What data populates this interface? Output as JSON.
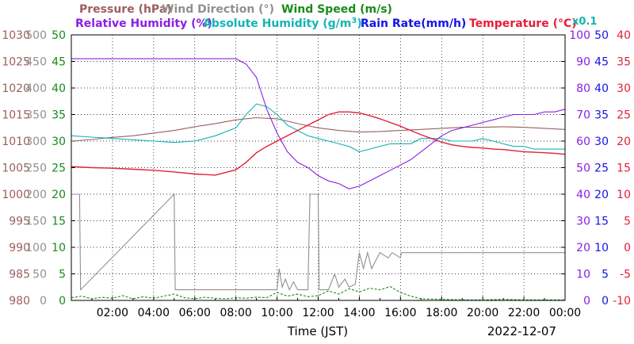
{
  "header": {
    "pressure": "Pressure (hPa)",
    "wind_dir": "Wind Direction (°)",
    "wind_speed": "Wind Speed (m/s)",
    "rel_hum": "Relative Humidity (%)",
    "abs_hum_main": "Absolute Humidity (g/m",
    "abs_hum_sup": "3",
    "abs_hum_end": ")",
    "rain": "Rain Rate(mm/h)",
    "temp": "Temperature (°C)",
    "rain_scale": "x0.1"
  },
  "footer": {
    "xlabel": "Time (JST)",
    "date": "2022-12-07"
  },
  "colors": {
    "pressure": "#9c5f5f",
    "wind_dir": "#909090",
    "wind_speed": "#1a8a1a",
    "rel_hum": "#8c1ee6",
    "abs_hum": "#14b4b4",
    "rain": "#1414e6",
    "temp": "#e61e3c",
    "frame": "#000000"
  },
  "chart_data": {
    "type": "line",
    "title": "",
    "xlabel": "Time (JST)",
    "x_ticks": [
      "02:00",
      "04:00",
      "06:00",
      "08:00",
      "10:00",
      "12:00",
      "14:00",
      "16:00",
      "18:00",
      "20:00",
      "22:00",
      "00:00"
    ],
    "xlim": [
      0,
      24
    ],
    "grid": true,
    "legend": "top",
    "axes": {
      "pressure": {
        "label": "Pressure (hPa)",
        "ylim": [
          980,
          1030
        ],
        "ticks": [
          1030,
          1025,
          1020,
          1015,
          1010,
          1005,
          1000,
          995,
          990,
          985,
          980
        ]
      },
      "wind_dir": {
        "label": "Wind Direction (°)",
        "ylim": [
          0,
          500
        ],
        "ticks": [
          500,
          450,
          400,
          350,
          300,
          250,
          200,
          150,
          100,
          50,
          0
        ]
      },
      "wind_speed": {
        "label": "Wind Speed (m/s)",
        "ylim": [
          0,
          50
        ],
        "ticks": [
          50,
          45,
          40,
          35,
          30,
          25,
          20,
          15,
          10,
          5,
          0
        ]
      },
      "rel_hum": {
        "label": "Relative Humidity (%)",
        "ylim": [
          0,
          100
        ],
        "ticks": [
          100,
          90,
          80,
          70,
          60,
          50,
          40,
          30,
          20,
          10,
          0
        ]
      },
      "rain": {
        "label": "Rain Rate(mm/h) x0.1",
        "ylim": [
          0,
          50
        ],
        "ticks": [
          50,
          45,
          40,
          35,
          30,
          25,
          20,
          15,
          10,
          5,
          0
        ]
      },
      "temp": {
        "label": "Temperature (°C)",
        "ylim": [
          -10,
          40
        ],
        "ticks": [
          40,
          35,
          30,
          25,
          20,
          15,
          10,
          5,
          0,
          -5,
          -10
        ]
      }
    },
    "series": [
      {
        "name": "Pressure (hPa)",
        "axis": "pressure",
        "x": [
          0,
          1,
          2,
          3,
          4,
          5,
          6,
          7,
          8,
          9,
          10,
          11,
          12,
          13,
          14,
          15,
          16,
          17,
          18,
          19,
          20,
          21,
          22,
          23,
          24
        ],
        "values": [
          1010,
          1010.3,
          1010.7,
          1011,
          1011.5,
          1012,
          1012.7,
          1013.3,
          1014,
          1014.4,
          1014.2,
          1013.3,
          1012.5,
          1012,
          1011.7,
          1011.8,
          1012,
          1012.2,
          1012.4,
          1012.6,
          1012.6,
          1012.7,
          1012.6,
          1012.4,
          1012.2
        ]
      },
      {
        "name": "Wind Direction (°)",
        "axis": "wind_dir",
        "x": [
          0,
          0.4,
          0.45,
          5,
          5.05,
          10,
          10.1,
          10.25,
          10.4,
          10.6,
          10.8,
          11,
          11.2,
          11.5,
          11.6,
          11.8,
          11.9,
          12,
          12.05,
          12.5,
          12.8,
          13,
          13.3,
          13.5,
          13.8,
          14,
          14.2,
          14.4,
          14.6,
          15,
          15.4,
          15.6,
          16,
          16.05,
          24
        ],
        "values": [
          200,
          200,
          20,
          200,
          20,
          20,
          60,
          25,
          40,
          20,
          35,
          20,
          20,
          20,
          200,
          200,
          200,
          200,
          20,
          20,
          50,
          25,
          40,
          25,
          30,
          90,
          60,
          90,
          60,
          90,
          80,
          90,
          80,
          90,
          90
        ]
      },
      {
        "name": "Wind Speed (m/s)",
        "axis": "wind_speed",
        "x": [
          0,
          0.5,
          1,
          1.5,
          2,
          2.5,
          3,
          3.5,
          4,
          4.5,
          5,
          5.5,
          6,
          6.5,
          7,
          7.5,
          8,
          8.5,
          9,
          9.5,
          10,
          10.5,
          11,
          11.5,
          12,
          12.5,
          13,
          13.5,
          14,
          14.5,
          15,
          15.5,
          16,
          16.5,
          17,
          18,
          19,
          20,
          21,
          22,
          23,
          24
        ],
        "values": [
          0.5,
          0.8,
          0.3,
          0.6,
          0.4,
          0.9,
          0.3,
          0.7,
          0.4,
          0.8,
          1.2,
          0.5,
          0.3,
          0.6,
          0.4,
          0.3,
          0.5,
          0.4,
          0.6,
          0.5,
          1.5,
          0.8,
          1.2,
          0.7,
          0.9,
          1.8,
          1.2,
          2.2,
          1.6,
          2.3,
          2.0,
          2.6,
          1.5,
          0.8,
          0.3,
          0.2,
          0.1,
          0.1,
          0.2,
          0.1,
          0.1,
          0.1
        ]
      },
      {
        "name": "Relative Humidity (%)",
        "axis": "rel_hum",
        "x": [
          0,
          1,
          2,
          3,
          4,
          5,
          6,
          7,
          8,
          8.5,
          9,
          9.5,
          10,
          10.5,
          11,
          11.5,
          12,
          12.5,
          13,
          13.5,
          14,
          14.5,
          15,
          15.5,
          16,
          16.5,
          17,
          17.5,
          18,
          18.5,
          19,
          19.5,
          20,
          20.5,
          21,
          21.5,
          22,
          22.5,
          23,
          23.5,
          24
        ],
        "values": [
          91,
          91,
          91,
          91,
          91,
          91,
          91,
          91,
          91,
          89,
          84,
          72,
          63,
          56,
          52,
          50,
          47,
          45,
          44,
          42,
          43,
          45,
          47,
          49,
          51,
          53,
          56,
          59,
          62,
          64,
          65,
          66,
          67,
          68,
          69,
          70,
          70,
          70,
          71,
          71,
          72
        ]
      },
      {
        "name": "Absolute Humidity (g/m3)",
        "axis": "rel_hum",
        "x": [
          0,
          1,
          2,
          3,
          4,
          5,
          6,
          7,
          8,
          8.5,
          9,
          9.5,
          10,
          10.5,
          11,
          11.5,
          12,
          12.5,
          13,
          13.5,
          14,
          14.5,
          15,
          15.5,
          16,
          16.5,
          17,
          17.5,
          18,
          18.5,
          19,
          19.5,
          20,
          20.5,
          21,
          21.5,
          22,
          22.5,
          23,
          23.5,
          24
        ],
        "values": [
          62,
          61.5,
          61,
          60.5,
          60,
          59.5,
          60,
          62,
          65,
          70,
          74,
          73,
          70,
          66,
          64,
          62,
          61,
          60,
          59,
          58,
          56,
          57,
          58,
          59,
          59,
          59,
          61,
          61,
          61,
          60,
          60,
          60,
          61,
          60,
          59,
          58,
          58,
          57,
          57,
          57,
          57
        ]
      },
      {
        "name": "Rain Rate(mm/h)",
        "axis": "rain",
        "x": [
          0,
          24
        ],
        "values": [
          0,
          0
        ]
      },
      {
        "name": "Temperature (°C)",
        "axis": "temp",
        "x": [
          0,
          1,
          2,
          3,
          4,
          5,
          6,
          7,
          8,
          8.5,
          9,
          9.5,
          10,
          10.5,
          11,
          11.5,
          12,
          12.5,
          13,
          13.5,
          14,
          14.5,
          15,
          15.5,
          16,
          16.5,
          17,
          17.5,
          18,
          18.5,
          19,
          19.5,
          20,
          20.5,
          21,
          21.5,
          22,
          22.5,
          23,
          23.5,
          24
        ],
        "values": [
          15.2,
          15.0,
          14.9,
          14.7,
          14.5,
          14.2,
          13.8,
          13.6,
          14.6,
          16.0,
          17.8,
          19.0,
          20.0,
          21.0,
          22.0,
          23.0,
          24.0,
          25.0,
          25.5,
          25.5,
          25.3,
          24.8,
          24.2,
          23.5,
          22.8,
          22.0,
          21.2,
          20.5,
          19.8,
          19.3,
          19.0,
          18.8,
          18.7,
          18.5,
          18.4,
          18.2,
          18.0,
          17.9,
          17.8,
          17.7,
          17.5
        ]
      }
    ]
  }
}
